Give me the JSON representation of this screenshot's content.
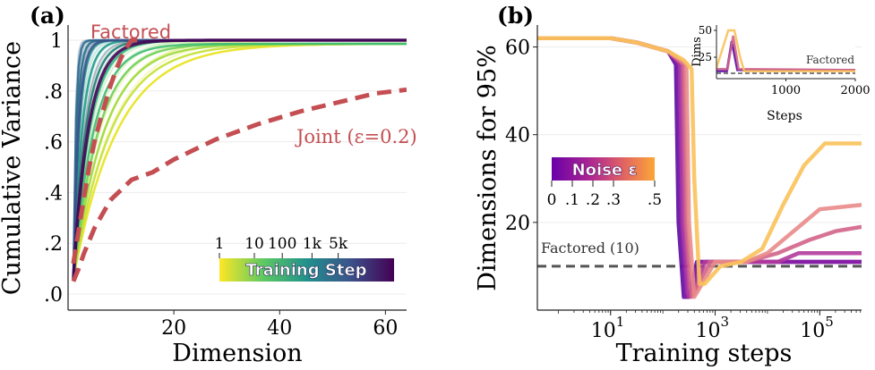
{
  "chart_data": [
    {
      "type": "line",
      "panel_label": "(a)",
      "xlabel": "Dimension",
      "ylabel": "Cumulative Variance",
      "xlim": [
        0,
        64
      ],
      "ylim": [
        0,
        1.0
      ],
      "xticks": [
        20,
        40,
        60
      ],
      "xtick_labels": [
        "20",
        "40",
        "60"
      ],
      "yticks": [
        0,
        0.2,
        0.4,
        0.6,
        0.8,
        1.0
      ],
      "ytick_labels": [
        ".0",
        ".2",
        ".4",
        ".6",
        ".8",
        "1"
      ],
      "annotations": {
        "factored": "Factored",
        "joint": "Joint (ε=0.2)"
      },
      "colorbar": {
        "title": "Training Step",
        "tick_labels": [
          "1",
          "10",
          "100",
          "1k",
          "5k"
        ]
      },
      "series": [
        {
          "name": "Factored",
          "style": "dashed",
          "color": "#c44e52",
          "x": [
            1,
            2,
            3,
            4,
            5,
            6,
            7,
            8,
            9,
            10,
            11,
            12,
            14
          ],
          "y": [
            0.12,
            0.25,
            0.38,
            0.5,
            0.6,
            0.68,
            0.75,
            0.82,
            0.88,
            0.93,
            0.97,
            1.0,
            1.0
          ]
        },
        {
          "name": "Joint (ε=0.2)",
          "style": "dashed",
          "color": "#c44e52",
          "x": [
            1,
            2,
            3,
            5,
            8,
            12,
            16,
            20,
            28,
            36,
            44,
            52,
            58,
            64
          ],
          "y": [
            0.05,
            0.1,
            0.16,
            0.26,
            0.37,
            0.45,
            0.48,
            0.53,
            0.61,
            0.67,
            0.72,
            0.76,
            0.79,
            0.805
          ]
        }
      ],
      "training_curves": [
        {
          "step": 1,
          "color": "#e8e21c",
          "rate": 0.12
        },
        {
          "step": 3,
          "color": "#c4e034",
          "rate": 0.14
        },
        {
          "step": 10,
          "color": "#9dd93b",
          "rate": 0.17
        },
        {
          "step": 30,
          "color": "#6ece58",
          "rate": 0.21
        },
        {
          "step": 60,
          "color": "#3fbc73",
          "rate": 0.26
        },
        {
          "step": 100,
          "color": "#2fb47c",
          "rate": 0.32
        },
        {
          "step": 200,
          "color": "#21a585",
          "rate": 0.42
        },
        {
          "step": 400,
          "color": "#1f9a8a",
          "rate": 0.6
        },
        {
          "step": 700,
          "color": "#23898e",
          "rate": 0.9
        },
        {
          "step": 1000,
          "color": "#2a788e",
          "rate": 1.4
        },
        {
          "step": 1500,
          "color": "#31688e",
          "rate": 2.2
        },
        {
          "step": 2500,
          "color": "#3b528b",
          "rate": 1.0
        },
        {
          "step": 5000,
          "color": "#440154",
          "rate": 0.35
        }
      ]
    },
    {
      "type": "line",
      "panel_label": "(b)",
      "xlabel": "Training steps",
      "ylabel": "Dimensions for 95%",
      "xscale": "log",
      "xlim_log10": [
        -0.4,
        5.8
      ],
      "ylim": [
        0,
        65
      ],
      "xticks_log10": [
        1,
        3,
        5
      ],
      "xtick_labels": [
        "10",
        "10",
        "10"
      ],
      "xtick_exps": [
        "1",
        "3",
        "5"
      ],
      "yticks": [
        20,
        40,
        60
      ],
      "ytick_labels": [
        "20",
        "40",
        "60"
      ],
      "reference_line": {
        "label": "Factored (10)",
        "value": 10
      },
      "colorbar": {
        "title": "Noise ε",
        "tick_labels": [
          "0",
          ".1",
          ".2",
          ".3",
          ".5"
        ],
        "tick_values": [
          0,
          0.1,
          0.2,
          0.3,
          0.5
        ]
      },
      "series": [
        {
          "name": "ε=0",
          "color": "#5b0aa0",
          "log_x": [
            -0.4,
            1.0,
            1.5,
            2.1,
            2.25,
            2.3,
            2.4,
            2.5,
            2.65,
            2.8,
            3.0,
            5.8
          ],
          "y": [
            62,
            62,
            61,
            59,
            56,
            20,
            3,
            3,
            11,
            11,
            11,
            11
          ]
        },
        {
          "name": "ε=0.05",
          "color": "#8b1fa5",
          "log_x": [
            -0.4,
            1.0,
            1.5,
            2.1,
            2.3,
            2.35,
            2.45,
            2.55,
            2.7,
            2.9,
            5.8
          ],
          "y": [
            62,
            62,
            61,
            59,
            56,
            20,
            3,
            4,
            11,
            11,
            11
          ]
        },
        {
          "name": "ε=0.1",
          "color": "#b23a9c",
          "log_x": [
            -0.4,
            1.0,
            1.5,
            2.1,
            2.35,
            2.4,
            2.5,
            2.6,
            2.8,
            3.2,
            4.2,
            4.6,
            5.8
          ],
          "y": [
            62,
            62,
            61,
            59,
            56,
            20,
            3,
            4,
            11,
            11,
            11,
            13,
            13
          ]
        },
        {
          "name": "ε=0.2",
          "color": "#d2648a",
          "log_x": [
            -0.4,
            1.0,
            1.5,
            2.1,
            2.4,
            2.45,
            2.55,
            2.65,
            2.9,
            3.6,
            4.2,
            4.8,
            5.3,
            5.8
          ],
          "y": [
            62,
            62,
            61,
            59,
            56,
            20,
            3,
            5,
            11,
            11,
            13,
            16,
            18,
            19
          ]
        },
        {
          "name": "ε=0.3",
          "color": "#e98a89",
          "log_x": [
            -0.4,
            1.0,
            1.5,
            2.1,
            2.45,
            2.5,
            2.6,
            2.7,
            3.0,
            3.6,
            4.0,
            4.5,
            5.0,
            5.8
          ],
          "y": [
            62,
            62,
            61,
            59,
            56,
            20,
            3,
            5,
            11,
            11,
            13,
            18,
            23,
            24
          ]
        },
        {
          "name": "ε=0.5",
          "color": "#f9c25a",
          "log_x": [
            -0.4,
            1.0,
            1.5,
            2.1,
            2.4,
            2.55,
            2.6,
            2.7,
            2.8,
            3.1,
            3.5,
            3.9,
            4.3,
            4.7,
            5.1,
            5.8
          ],
          "y": [
            62,
            62,
            61,
            59,
            57,
            55,
            30,
            6,
            6,
            10,
            11,
            14,
            24,
            33,
            38,
            38
          ]
        }
      ],
      "inset": {
        "xlabel": "Steps",
        "ylabel": "Dims",
        "xlim": [
          0,
          2000
        ],
        "ylim": [
          5,
          55
        ],
        "xticks": [
          1000,
          2000
        ],
        "xtick_labels": [
          "1000",
          "2000"
        ],
        "yticks": [
          25,
          50
        ],
        "ytick_labels": [
          "25",
          "50"
        ],
        "reference_label": "Factored",
        "series": [
          {
            "name": "ε=0",
            "color": "#5b0aa0",
            "x": [
              0,
              150,
              220,
              300,
              2000
            ],
            "y": [
              12,
              12,
              40,
              13,
              13
            ]
          },
          {
            "name": "ε=0.2",
            "color": "#d2648a",
            "x": [
              0,
              160,
              240,
              320,
              2000
            ],
            "y": [
              14,
              14,
              45,
              14,
              13
            ]
          },
          {
            "name": "ε=0.5",
            "color": "#f9c25a",
            "x": [
              0,
              170,
              260,
              340,
              400,
              2000
            ],
            "y": [
              15,
              50,
              50,
              25,
              12,
              12
            ]
          }
        ]
      }
    }
  ]
}
